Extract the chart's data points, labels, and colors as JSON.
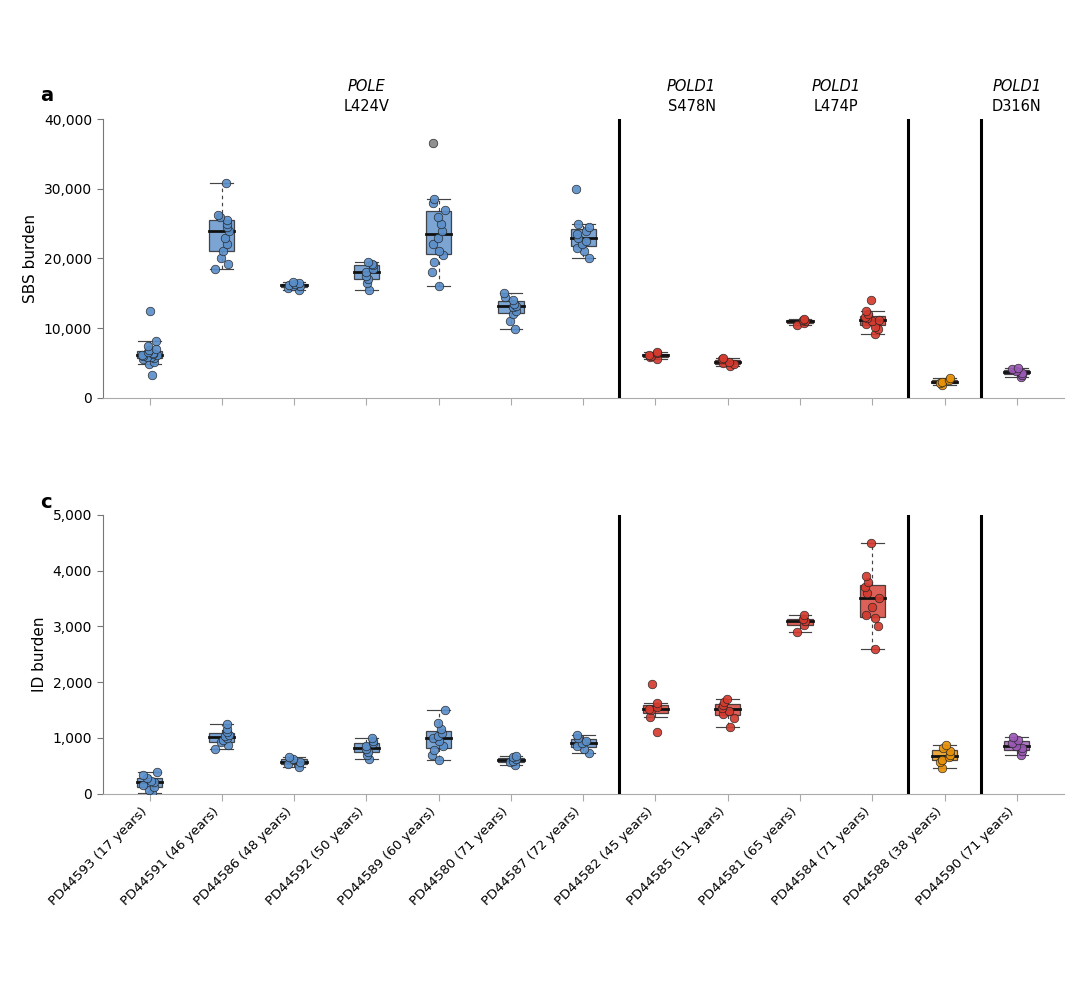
{
  "sbs_ylabel": "SBS burden",
  "id_ylabel": "ID burden",
  "xlabels": [
    "PD44593 (17 years)",
    "PD44591 (46 years)",
    "PD44586 (48 years)",
    "PD44592 (50 years)",
    "PD44589 (60 years)",
    "PD44580 (71 years)",
    "PD44587 (72 years)",
    "PD44582 (45 years)",
    "PD44585 (51 years)",
    "PD44581 (65 years)",
    "PD44584 (71 years)",
    "PD44588 (38 years)",
    "PD44590 (71 years)"
  ],
  "colors": {
    "blue": "#5b8fc9",
    "red": "#d43b2f",
    "orange": "#e8920a",
    "purple": "#9b59b6",
    "gray": "#888888"
  },
  "group_colors": [
    "blue",
    "blue",
    "blue",
    "blue",
    "blue",
    "blue",
    "blue",
    "red",
    "red",
    "red",
    "red",
    "orange",
    "purple"
  ],
  "dividers": [
    7,
    11,
    12
  ],
  "annotations_sbs": [
    {
      "x": 3.0,
      "gene": "POLE",
      "mut": "L424V"
    },
    {
      "x": 7.5,
      "gene": "POLD1",
      "mut": "S478N"
    },
    {
      "x": 9.5,
      "gene": "POLD1",
      "mut": "L474P"
    },
    {
      "x": 12.0,
      "gene": "POLD1",
      "mut": "D316N"
    }
  ],
  "sbs_data": [
    [
      3200,
      4800,
      5200,
      5500,
      5700,
      5800,
      5900,
      6000,
      6100,
      6200,
      6300,
      6400,
      6600,
      6800,
      7000,
      7500,
      8200,
      12500
    ],
    [
      18500,
      19200,
      20000,
      21000,
      22000,
      23000,
      24000,
      24500,
      25000,
      25500,
      26000,
      26200,
      30800
    ],
    [
      15500,
      15700,
      16000,
      16100,
      16200,
      16300,
      16500,
      16600
    ],
    [
      15500,
      16500,
      17000,
      17500,
      18000,
      18500,
      19000,
      19200,
      19500
    ],
    [
      16000,
      18000,
      19500,
      20500,
      21000,
      22000,
      23000,
      24000,
      25000,
      26000,
      27000,
      28000,
      28500,
      36500
    ],
    [
      9800,
      11000,
      12000,
      12500,
      13000,
      13200,
      13500,
      14000,
      14500,
      15000
    ],
    [
      20000,
      21000,
      21500,
      22000,
      22500,
      23000,
      23500,
      24000,
      24500,
      25000,
      30000
    ],
    [
      5500,
      5800,
      6000,
      6200,
      6400,
      6600
    ],
    [
      4500,
      4800,
      5000,
      5200,
      5500,
      5700
    ],
    [
      10500,
      10700,
      11000,
      11100,
      11300
    ],
    [
      9200,
      9800,
      10200,
      10600,
      11000,
      11200,
      11400,
      11600,
      12000,
      12500,
      14000
    ],
    [
      1900,
      2100,
      2300,
      2600,
      2900
    ],
    [
      3000,
      3300,
      3600,
      3900,
      4100,
      4300
    ]
  ],
  "sbs_gray_outlier_group": 4,
  "sbs_gray_outlier_value": 36500,
  "id_data": [
    [
      10,
      70,
      110,
      150,
      200,
      230,
      280,
      330,
      380
    ],
    [
      800,
      870,
      920,
      970,
      1000,
      1030,
      1060,
      1100,
      1150,
      1250
    ],
    [
      480,
      530,
      575,
      620,
      660
    ],
    [
      620,
      700,
      750,
      800,
      850,
      900,
      950,
      1000
    ],
    [
      600,
      700,
      780,
      860,
      950,
      1000,
      1040,
      1090,
      1150,
      1270,
      1500
    ],
    [
      520,
      560,
      590,
      620,
      650,
      680
    ],
    [
      720,
      800,
      860,
      910,
      950,
      1000,
      1050
    ],
    [
      1100,
      1380,
      1500,
      1520,
      1560,
      1620,
      1960
    ],
    [
      1200,
      1350,
      1430,
      1490,
      1530,
      1590,
      1650,
      1700
    ],
    [
      2900,
      3020,
      3100,
      3140,
      3200
    ],
    [
      2600,
      3000,
      3150,
      3200,
      3350,
      3500,
      3600,
      3700,
      3800,
      3900,
      4500
    ],
    [
      460,
      560,
      610,
      650,
      700,
      760,
      820,
      870
    ],
    [
      700,
      760,
      810,
      860,
      910,
      960,
      1010
    ]
  ],
  "sbs_ylim": [
    0,
    40000
  ],
  "id_ylim": [
    0,
    5000
  ],
  "sbs_yticks": [
    0,
    10000,
    20000,
    30000,
    40000
  ],
  "sbs_yticklabels": [
    "0",
    "10,000",
    "20,000",
    "30,000",
    "40,000"
  ],
  "id_yticks": [
    0,
    1000,
    2000,
    3000,
    4000,
    5000
  ],
  "id_yticklabels": [
    "0",
    "1,000",
    "2,000",
    "3,000",
    "4,000",
    "5,000"
  ]
}
